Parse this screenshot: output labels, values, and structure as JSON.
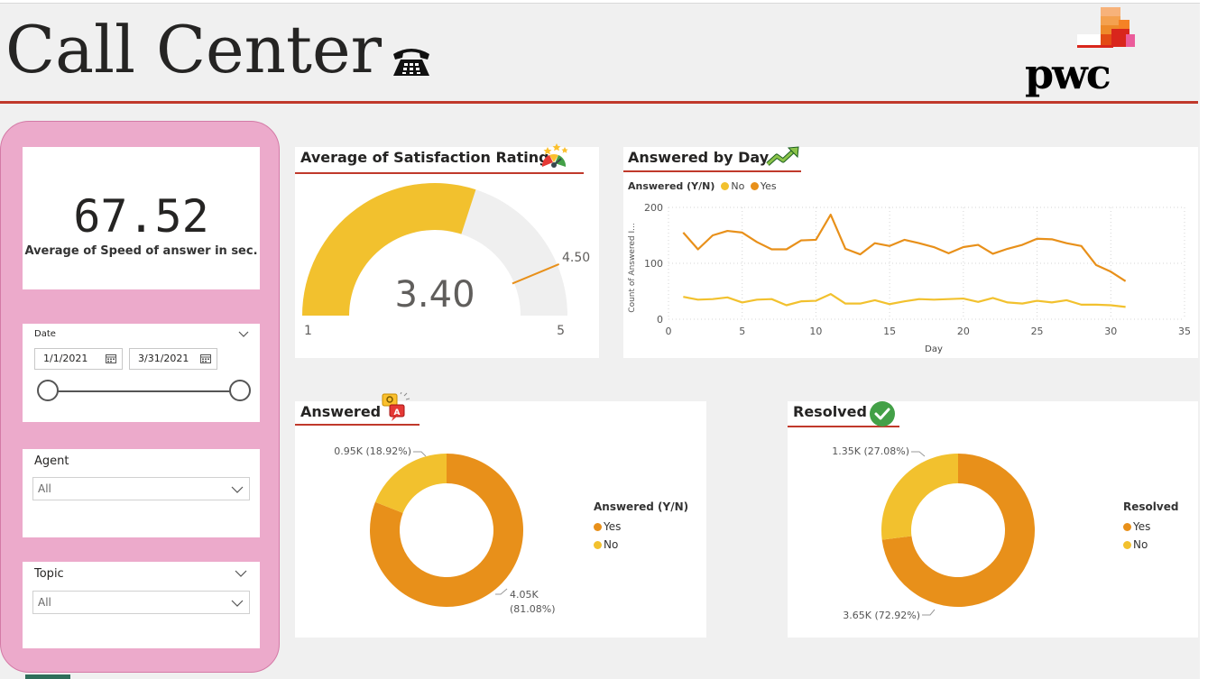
{
  "header": {
    "title": "Call Center",
    "logo_text": "pwc"
  },
  "colors": {
    "accent_red": "#c0392b",
    "filter_panel": "#ecaacb",
    "yes_orange": "#e8901a",
    "no_yellow": "#f2c12e",
    "gauge_bg": "#efefef",
    "target_line": "#e8901a"
  },
  "kpi": {
    "value": "67.52",
    "label": "Average of Speed of answer in sec."
  },
  "date_slicer": {
    "title": "Date",
    "start": "1/1/2021",
    "end": "3/31/2021"
  },
  "agent_slicer": {
    "title": "Agent",
    "value": "All"
  },
  "topic_slicer": {
    "title": "Topic",
    "value": "All"
  },
  "gauge": {
    "title": "Average of Satisfaction Rating",
    "value": 3.4,
    "value_label": "3.40",
    "min": 1,
    "min_label": "1",
    "max": 5,
    "max_label": "5",
    "target": 4.5,
    "target_label": "4.50"
  },
  "answered_by_day": {
    "title": "Answered by Day",
    "legend_title": "Answered (Y/N)",
    "legend_no": "No",
    "legend_yes": "Yes",
    "y_axis_title": "Count of Answered I...",
    "x_axis_title": "Day"
  },
  "answered": {
    "title": "Answered",
    "legend_title": "Answered (Y/N)",
    "legend_yes": "Yes",
    "legend_no": "No",
    "label_no_value": "0.95K (18.92%)",
    "label_yes_value": "4.05K",
    "label_yes_pct": "(81.08%)"
  },
  "resolved": {
    "title": "Resolved",
    "legend_title": "Resolved",
    "legend_yes": "Yes",
    "legend_no": "No",
    "label_no_value": "1.35K (27.08%)",
    "label_yes_value": "3.65K (72.92%)"
  },
  "chart_data": [
    {
      "type": "line",
      "title": "Answered by Day",
      "xlabel": "Day",
      "ylabel": "Count of Answered I...",
      "xlim": [
        0,
        35
      ],
      "ylim": [
        0,
        200
      ],
      "x_ticks": [
        0,
        5,
        10,
        15,
        20,
        25,
        30,
        35
      ],
      "y_ticks": [
        0,
        100,
        200
      ],
      "grid": true,
      "legend_title": "Answered (Y/N)",
      "legend_position": "top-left",
      "x": [
        1,
        2,
        3,
        4,
        5,
        6,
        7,
        8,
        9,
        10,
        11,
        12,
        13,
        14,
        15,
        16,
        17,
        18,
        19,
        20,
        21,
        22,
        23,
        24,
        25,
        26,
        27,
        28,
        29,
        30,
        31
      ],
      "series": [
        {
          "name": "No",
          "color": "#f2c12e",
          "values": [
            40,
            35,
            36,
            39,
            30,
            35,
            36,
            25,
            32,
            33,
            45,
            28,
            28,
            34,
            27,
            32,
            36,
            35,
            36,
            37,
            31,
            38,
            30,
            28,
            33,
            30,
            34,
            26,
            26,
            25,
            22
          ]
        },
        {
          "name": "Yes",
          "color": "#e8901a",
          "values": [
            155,
            125,
            150,
            158,
            155,
            138,
            125,
            125,
            141,
            142,
            187,
            126,
            116,
            136,
            131,
            142,
            136,
            129,
            118,
            129,
            133,
            117,
            126,
            133,
            144,
            143,
            136,
            131,
            97,
            85,
            68
          ]
        }
      ]
    },
    {
      "type": "pie",
      "title": "Answered",
      "legend_title": "Answered (Y/N)",
      "categories": [
        "Yes",
        "No"
      ],
      "values": [
        4050,
        950
      ],
      "percents": [
        81.08,
        18.92
      ],
      "colors": [
        "#e8901a",
        "#f2c12e"
      ]
    },
    {
      "type": "pie",
      "title": "Resolved",
      "legend_title": "Resolved",
      "categories": [
        "Yes",
        "No"
      ],
      "values": [
        3650,
        1350
      ],
      "percents": [
        72.92,
        27.08
      ],
      "colors": [
        "#e8901a",
        "#f2c12e"
      ]
    }
  ]
}
